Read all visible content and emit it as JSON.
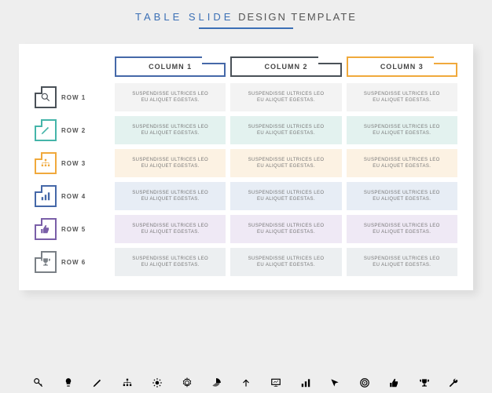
{
  "title_accent": "TABLE SLIDE",
  "title_rest": "DESIGN TEMPLATE",
  "accent_color": "#3b6fb5",
  "background": "#eeeeee",
  "panel_bg": "#ffffff",
  "columns": [
    {
      "label": "COLUMN 1",
      "color": "#4568a8"
    },
    {
      "label": "COLUMN 2",
      "color": "#4a5158"
    },
    {
      "label": "COLUMN 3",
      "color": "#f0a93c"
    }
  ],
  "rows": [
    {
      "label": "ROW 1",
      "icon": "magnifier",
      "color": "#4a5158",
      "tint": "#f3f3f3"
    },
    {
      "label": "ROW 2",
      "icon": "pencil",
      "color": "#45b5a9",
      "tint": "#e3f2ef"
    },
    {
      "label": "ROW 3",
      "icon": "org",
      "color": "#f0a93c",
      "tint": "#fcf2e3"
    },
    {
      "label": "ROW 4",
      "icon": "bar",
      "color": "#4568a8",
      "tint": "#e7edf5"
    },
    {
      "label": "ROW 5",
      "icon": "thumb",
      "color": "#7a5fa8",
      "tint": "#efe9f5"
    },
    {
      "label": "ROW 6",
      "icon": "trophy",
      "color": "#7a8086",
      "tint": "#eceff1"
    }
  ],
  "cell_line1": "SUSPENDISSE ULTRICES LEO",
  "cell_line2": "EU ALIQUET EGESTAS.",
  "footer_icons": [
    "key",
    "bulb",
    "pencil",
    "org",
    "sun",
    "gear",
    "pie",
    "arrow",
    "board",
    "bar",
    "pointer",
    "target",
    "thumb",
    "trophy",
    "wrench"
  ]
}
